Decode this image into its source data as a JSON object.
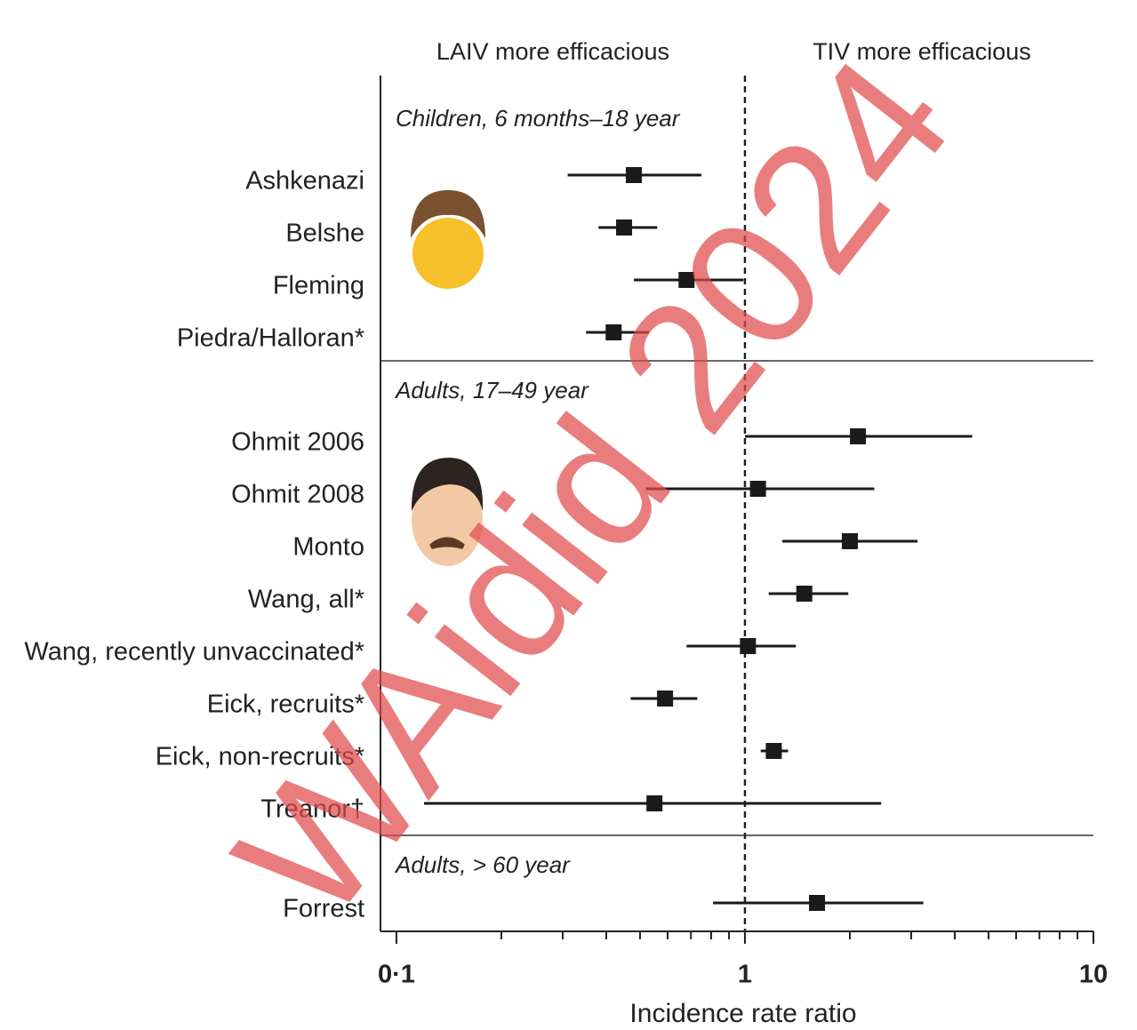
{
  "chart_data": {
    "type": "forest",
    "header_left": "LAIV more efficacious",
    "header_right": "TIV more efficacious",
    "x_label": "Incidence rate ratio",
    "x_scale": "log",
    "xlim": [
      0.09,
      10
    ],
    "xticks": [
      {
        "value": 0.1,
        "label": "0·1"
      },
      1,
      10
    ],
    "minor_xticks": [
      0.2,
      0.3,
      0.4,
      0.5,
      0.6,
      0.7,
      0.8,
      0.9,
      2,
      3,
      4,
      5,
      6,
      7,
      8,
      9
    ],
    "reference_line": 1,
    "color": "#1a1a1a",
    "groups": [
      {
        "label": "Children, 6 months–18 year",
        "studies": [
          {
            "name": "Ashkenazi",
            "estimate": 0.48,
            "lower": 0.31,
            "upper": 0.75
          },
          {
            "name": "Belshe",
            "estimate": 0.45,
            "lower": 0.38,
            "upper": 0.56
          },
          {
            "name": "Fleming",
            "estimate": 0.68,
            "lower": 0.48,
            "upper": 0.99
          },
          {
            "name": "Piedra/Halloran*",
            "estimate": 0.42,
            "lower": 0.35,
            "upper": 0.53
          }
        ]
      },
      {
        "label": "Adults, 17–49 year",
        "studies": [
          {
            "name": "Ohmit 2006",
            "estimate": 2.11,
            "lower": 1.0,
            "upper": 4.49
          },
          {
            "name": "Ohmit 2008",
            "estimate": 1.09,
            "lower": 0.52,
            "upper": 2.35
          },
          {
            "name": "Monto",
            "estimate": 2.0,
            "lower": 1.28,
            "upper": 3.13
          },
          {
            "name": "Wang, all*",
            "estimate": 1.48,
            "lower": 1.17,
            "upper": 1.98
          },
          {
            "name": "Wang, recently unvaccinated*",
            "estimate": 1.02,
            "lower": 0.68,
            "upper": 1.4
          },
          {
            "name": "Eick, recruits*",
            "estimate": 0.59,
            "lower": 0.47,
            "upper": 0.73
          },
          {
            "name": "Eick, non-recruits*",
            "estimate": 1.21,
            "lower": 1.11,
            "upper": 1.33
          },
          {
            "name": "Treanor†",
            "estimate": 0.55,
            "lower": 0.12,
            "upper": 2.46
          }
        ]
      },
      {
        "label": "Adults, > 60 year",
        "studies": [
          {
            "name": "Forrest",
            "estimate": 1.61,
            "lower": 0.81,
            "upper": 3.25
          }
        ]
      }
    ]
  },
  "watermark": "WAidid 2024"
}
